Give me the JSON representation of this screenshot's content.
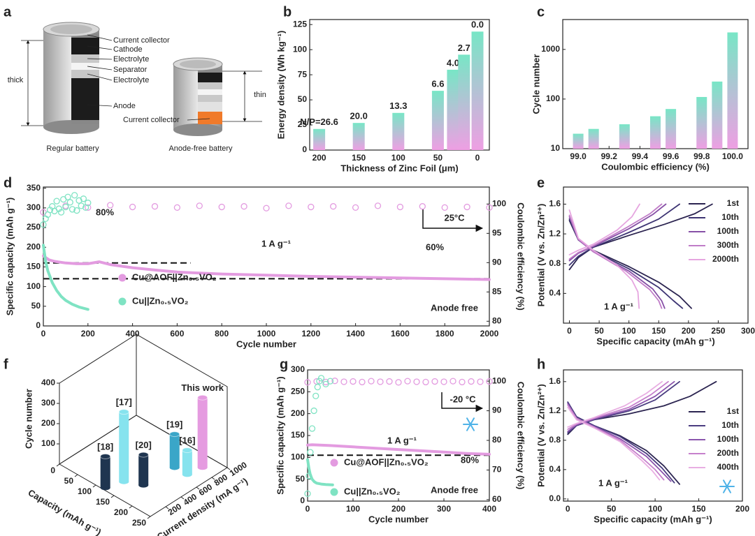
{
  "diagram": {
    "label": "a",
    "regular": {
      "layers": [
        "Current collector",
        "Cathode",
        "Electrolyte",
        "Separator",
        "Electrolyte",
        "Anode"
      ],
      "dimension": "thick",
      "caption": "Regular battery"
    },
    "anode_free": {
      "layers": [
        "Current collector"
      ],
      "dimension": "thin",
      "caption": "Anode-free battery"
    }
  },
  "chart_data": [
    {
      "label": "b",
      "type": "bar",
      "x": [
        200,
        150,
        100,
        50,
        31,
        17,
        0
      ],
      "values": [
        21,
        27,
        37,
        59,
        80,
        95,
        118
      ],
      "bar_labels": [
        "N/P=26.6",
        "20.0",
        "13.3",
        "6.6",
        "4.0",
        "2.7",
        "0.0"
      ],
      "xlim": [
        212,
        -15
      ],
      "xticks": [
        200,
        150,
        100,
        50,
        0
      ],
      "ylim": [
        0,
        130
      ],
      "yticks": [
        0,
        25,
        50,
        75,
        100,
        125
      ],
      "xlabel": "Thickness of Zinc Foil (μm)",
      "ylabel": "Energy density (Wh kg⁻¹)",
      "colors": [
        "#78e6c6",
        "#ee9fe3"
      ]
    },
    {
      "label": "c",
      "type": "bar",
      "log_scale": true,
      "x": [
        99.0,
        99.1,
        99.3,
        99.5,
        99.6,
        99.8,
        99.9,
        100.0
      ],
      "values": [
        20,
        25,
        31,
        45,
        63,
        110,
        225,
        2200
      ],
      "xlim": [
        98.9,
        100.1
      ],
      "xticks": [
        {
          "value": 99,
          "label": "99.0"
        },
        99.2,
        99.4,
        99.6,
        99.8,
        {
          "value": 100,
          "label": "100.0"
        }
      ],
      "ylim": [
        10,
        4000
      ],
      "yticks": [
        10,
        100,
        1000
      ],
      "xlabel": "Coulombic efficiency (%)",
      "ylabel": "Cycle number",
      "colors": [
        "#78e6c6",
        "#ee9fe3"
      ]
    },
    {
      "label": "d",
      "type": "scatter",
      "xlim": [
        0,
        2000
      ],
      "xticks": [
        0,
        200,
        400,
        600,
        800,
        1000,
        1200,
        1400,
        1600,
        1800,
        2000
      ],
      "ylim": [
        0,
        353
      ],
      "yticks": [
        0,
        50,
        100,
        150,
        200,
        250,
        300,
        350
      ],
      "y2lim": [
        79.2,
        102.9
      ],
      "y2ticks": [
        80,
        85,
        90,
        95,
        100
      ],
      "xlabel": "Cycle number",
      "ylabel": "Specific capacity (mAh g⁻¹)",
      "y2label": "Coulombic efficiency (%)",
      "ref_lines": [
        160,
        120
      ],
      "annotations": [
        "80%",
        "60%",
        "1 A g⁻¹",
        "25°C",
        "Anode free"
      ],
      "series": [
        {
          "axis": "y2",
          "color": "#e39be0",
          "marker": "open",
          "x": [
            0,
            100,
            200,
            300,
            400,
            500,
            600,
            700,
            800,
            900,
            1000,
            1100,
            1200,
            1300,
            1400,
            1500,
            1600,
            1700,
            1800,
            1900,
            2000
          ],
          "values": [
            98.6,
            99.7,
            99.4,
            99.8,
            99.5,
            99.6,
            99.4,
            99.7,
            99.5,
            99.6,
            99.3,
            99.7,
            99.5,
            99.6,
            99.4,
            99.7,
            99.5,
            99.6,
            99.4,
            99.5,
            99.4
          ]
        },
        {
          "axis": "y2",
          "color": "#7fe3c3",
          "marker": "open",
          "x": [
            0,
            10,
            20,
            30,
            40,
            50,
            60,
            70,
            80,
            90,
            100,
            110,
            120,
            130,
            140,
            150,
            160,
            170,
            180,
            190,
            200
          ],
          "values": [
            96.5,
            97.5,
            98.2,
            99.0,
            99.6,
            98.8,
            100.5,
            99.2,
            98.6,
            100.8,
            99.5,
            101.2,
            100.3,
            99.1,
            101.5,
            98.9,
            100.6,
            99.7,
            100.9,
            99.4,
            100.2
          ]
        },
        {
          "name": "Cu@AOF||Zn₀.₅VO₂",
          "color": "#e39be0",
          "style": "line",
          "x": [
            0,
            25,
            50,
            100,
            150,
            200,
            250,
            300,
            400,
            500,
            600,
            800,
            1000,
            1200,
            1400,
            1600,
            1800,
            2000
          ],
          "values": [
            178,
            168,
            164,
            160,
            158,
            158,
            163,
            156,
            148,
            142,
            137,
            132,
            129,
            126,
            124,
            122,
            120,
            118
          ]
        },
        {
          "name": "Cu||Zn₀.₅VO₂",
          "color": "#7fe3c3",
          "style": "line",
          "x": [
            0,
            5,
            10,
            20,
            40,
            60,
            80,
            100,
            130,
            160,
            200
          ],
          "values": [
            205,
            185,
            165,
            140,
            110,
            90,
            75,
            65,
            55,
            48,
            42
          ]
        }
      ]
    },
    {
      "label": "e",
      "type": "line",
      "xlim": [
        -10,
        300
      ],
      "xticks": [
        0,
        50,
        100,
        150,
        200,
        250,
        300
      ],
      "ylim": [
        0,
        1.83
      ],
      "yticks": [
        0.4,
        0.8,
        1.2,
        1.6
      ],
      "xlabel": "Specific capacity (mAh g⁻¹)",
      "ylabel": "Potential (V vs. Zn/Zn²⁺)",
      "annotations": [
        "1 A g⁻¹"
      ],
      "series": [
        {
          "name": "1st",
          "color": "#2b2450",
          "x": [
            0,
            15,
            40,
            100,
            160,
            210,
            240,
            null,
            0,
            15,
            40,
            100,
            150,
            185,
            205
          ],
          "values": [
            0.72,
            0.88,
            1.02,
            1.18,
            1.33,
            1.47,
            1.6,
            null,
            1.38,
            1.12,
            0.98,
            0.76,
            0.55,
            0.36,
            0.2
          ]
        },
        {
          "name": "10th",
          "color": "#3d3473",
          "x": [
            0,
            15,
            40,
            100,
            150,
            185,
            null,
            0,
            15,
            40,
            100,
            150,
            175,
            190
          ],
          "values": [
            0.78,
            0.9,
            1.02,
            1.22,
            1.4,
            1.6,
            null,
            1.4,
            1.12,
            0.97,
            0.73,
            0.48,
            0.3,
            0.2
          ]
        },
        {
          "name": "100th",
          "color": "#8650a6",
          "x": [
            0,
            15,
            40,
            100,
            140,
            162,
            null,
            0,
            15,
            40,
            100,
            140,
            155,
            160
          ],
          "values": [
            0.84,
            0.94,
            1.03,
            1.27,
            1.46,
            1.6,
            null,
            1.43,
            1.12,
            0.96,
            0.7,
            0.46,
            0.3,
            0.2
          ]
        },
        {
          "name": "300th",
          "color": "#c07cc7",
          "x": [
            0,
            15,
            40,
            95,
            135,
            155,
            null,
            0,
            15,
            40,
            95,
            135,
            150,
            155
          ],
          "values": [
            0.86,
            0.95,
            1.04,
            1.28,
            1.47,
            1.6,
            null,
            1.45,
            1.13,
            0.96,
            0.7,
            0.45,
            0.3,
            0.2
          ]
        },
        {
          "name": "2000th",
          "color": "#e6a6e0",
          "x": [
            0,
            15,
            40,
            80,
            105,
            118,
            null,
            0,
            15,
            40,
            80,
            105,
            115,
            117
          ],
          "values": [
            0.92,
            0.98,
            1.06,
            1.25,
            1.43,
            1.6,
            null,
            1.52,
            1.14,
            0.98,
            0.78,
            0.58,
            0.42,
            0.2
          ]
        }
      ]
    },
    {
      "label": "f",
      "type": "bar3d",
      "categories": [
        "[18]",
        "[17]",
        "[20]",
        "[19]",
        "[16]",
        "This work"
      ],
      "x": [
        120,
        133,
        169,
        174,
        208,
        214
      ],
      "y": [
        30,
        210,
        294,
        675,
        679,
        849
      ],
      "values": [
        155,
        345,
        150,
        165,
        120,
        345
      ],
      "colors": [
        "#1f3550",
        "#86e3ee",
        "#1f3550",
        "#3aa6c8",
        "#86e3ee",
        "#e59be0"
      ],
      "xlim": [
        0,
        250
      ],
      "xticks": [
        0,
        50,
        100,
        150,
        200,
        250
      ],
      "ylim": [
        0,
        1000
      ],
      "yticks": [
        200,
        400,
        600,
        800,
        1000
      ],
      "zlim": [
        0,
        400
      ],
      "zticks": [
        100,
        200,
        300,
        400
      ],
      "xlabel": "Capacity (mAh g⁻¹)",
      "ylabel": "Current density (mA g⁻¹)",
      "zlabel": "Cycle number"
    },
    {
      "label": "g",
      "type": "scatter",
      "xlim": [
        0,
        400
      ],
      "xticks": [
        0,
        100,
        200,
        300,
        400
      ],
      "ylim": [
        0,
        300
      ],
      "yticks": [
        0,
        50,
        100,
        150,
        200,
        250,
        300
      ],
      "y2lim": [
        59.5,
        103.8
      ],
      "y2ticks": [
        60,
        70,
        80,
        90,
        100
      ],
      "xlabel": "Cycle number",
      "ylabel": "Specific capacity (mAh g⁻¹)",
      "y2label": "Coulombic efficiency (%)",
      "ref_lines": [
        105
      ],
      "annotations": [
        "-20 °C",
        "1 A g⁻¹",
        "80%",
        "Anode free"
      ],
      "series": [
        {
          "axis": "y2",
          "color": "#e39be0",
          "marker": "open",
          "x": [
            0,
            20,
            40,
            60,
            80,
            100,
            120,
            140,
            160,
            180,
            200,
            220,
            240,
            260,
            280,
            300,
            320,
            340,
            360,
            380,
            400
          ],
          "values": [
            99.6,
            99.9,
            99.7,
            100.1,
            99.8,
            99.9,
            99.7,
            100.0,
            99.8,
            99.9,
            99.6,
            100.0,
            99.8,
            99.7,
            99.9,
            99.8,
            100.0,
            99.7,
            99.9,
            99.8,
            99.9
          ]
        },
        {
          "axis": "y2",
          "color": "#7fe3c3",
          "marker": "open",
          "x": [
            0,
            3,
            6,
            10,
            14,
            18,
            22,
            26,
            30,
            40,
            50
          ],
          "values": [
            62,
            68,
            76,
            84,
            90,
            95,
            98,
            100,
            101,
            99,
            100
          ]
        },
        {
          "name": "Cu@AOF||Zn₀.₅VO₂",
          "color": "#e39be0",
          "style": "line",
          "x": [
            0,
            10,
            50,
            100,
            150,
            200,
            250,
            300,
            350,
            400
          ],
          "values": [
            128,
            129,
            127,
            124,
            121,
            118,
            115,
            112,
            109,
            107
          ]
        },
        {
          "name": "Cu||Zn₀.₅VO₂",
          "color": "#7fe3c3",
          "style": "line",
          "x": [
            0,
            3,
            6,
            10,
            15,
            20,
            30,
            40,
            55
          ],
          "values": [
            95,
            75,
            60,
            50,
            44,
            41,
            39,
            38,
            37
          ]
        }
      ]
    },
    {
      "label": "h",
      "type": "line",
      "xlim": [
        -5,
        200
      ],
      "xticks": [
        0,
        50,
        100,
        150,
        200
      ],
      "ylim": [
        -0.03,
        1.76
      ],
      "yticks": [
        {
          "value": 0,
          "label": "0.0"
        },
        0.4,
        0.8,
        1.2,
        1.6
      ],
      "xlabel": "Specific capacity (mAh g⁻¹)",
      "ylabel": "Potential (V vs. Zn/Zn²⁺)",
      "annotations": [
        "1 A g⁻¹"
      ],
      "series": [
        {
          "name": "1st",
          "color": "#2b2450",
          "x": [
            0,
            10,
            30,
            70,
            110,
            140,
            170,
            null,
            0,
            10,
            30,
            60,
            90,
            110,
            128
          ],
          "values": [
            0.88,
            1.0,
            1.08,
            1.16,
            1.27,
            1.4,
            1.6,
            null,
            1.32,
            1.12,
            1.0,
            0.86,
            0.66,
            0.45,
            0.2
          ]
        },
        {
          "name": "10th",
          "color": "#4a3c80",
          "x": [
            0,
            10,
            30,
            70,
            100,
            128,
            null,
            0,
            10,
            30,
            60,
            90,
            108,
            122
          ],
          "values": [
            0.9,
            1.0,
            1.08,
            1.2,
            1.35,
            1.6,
            null,
            1.32,
            1.12,
            1.0,
            0.85,
            0.62,
            0.42,
            0.22
          ]
        },
        {
          "name": "100th",
          "color": "#8b55ad",
          "x": [
            0,
            10,
            30,
            70,
            100,
            122,
            null,
            0,
            10,
            30,
            60,
            90,
            105,
            118
          ],
          "values": [
            0.92,
            1.01,
            1.09,
            1.22,
            1.4,
            1.6,
            null,
            1.3,
            1.1,
            0.99,
            0.82,
            0.58,
            0.4,
            0.24
          ]
        },
        {
          "name": "200th",
          "color": "#c680cc",
          "x": [
            0,
            10,
            30,
            70,
            95,
            115,
            null,
            0,
            10,
            30,
            60,
            85,
            100,
            110
          ],
          "values": [
            0.95,
            1.02,
            1.1,
            1.25,
            1.42,
            1.6,
            null,
            1.28,
            1.1,
            0.98,
            0.8,
            0.56,
            0.4,
            0.26
          ]
        },
        {
          "name": "400th",
          "color": "#e8aee2",
          "x": [
            0,
            10,
            30,
            65,
            90,
            108,
            null,
            0,
            10,
            30,
            60,
            85,
            97,
            105
          ],
          "values": [
            0.98,
            1.03,
            1.11,
            1.27,
            1.44,
            1.6,
            null,
            1.25,
            1.08,
            0.97,
            0.78,
            0.52,
            0.38,
            0.26
          ]
        }
      ]
    }
  ]
}
